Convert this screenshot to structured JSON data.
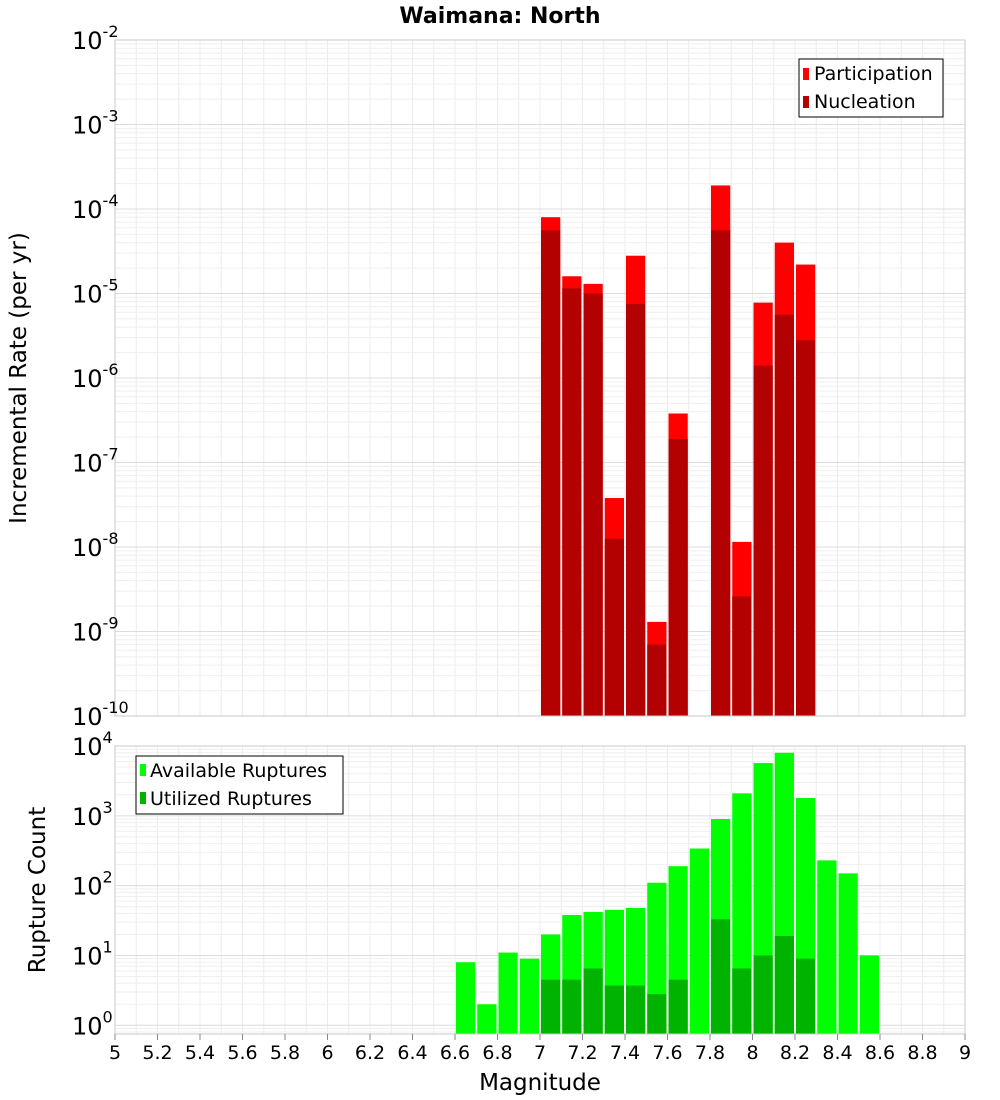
{
  "chart_data": [
    {
      "type": "bar",
      "title": "Waimana: North",
      "xlabel": "",
      "ylabel": "Incremental Rate (per yr)",
      "scale": "log",
      "xlim": [
        5,
        9
      ],
      "ylim": [
        1e-10,
        0.01
      ],
      "y_ticks": [
        {
          "base": "10",
          "exp": "-2"
        },
        {
          "base": "10",
          "exp": "-3"
        },
        {
          "base": "10",
          "exp": "-4"
        },
        {
          "base": "10",
          "exp": "-5"
        },
        {
          "base": "10",
          "exp": "-6"
        },
        {
          "base": "10",
          "exp": "-7"
        },
        {
          "base": "10",
          "exp": "-8"
        },
        {
          "base": "10",
          "exp": "-9"
        },
        {
          "base": "10",
          "exp": "-10"
        }
      ],
      "bin_width": 0.1,
      "grid": true,
      "legend": "top-right",
      "x": [
        7.05,
        7.15,
        7.25,
        7.35,
        7.45,
        7.55,
        7.65,
        7.85,
        7.95,
        8.05,
        8.15,
        8.25
      ],
      "series": [
        {
          "name": "Participation",
          "color": "#ff0000",
          "values": [
            8e-05,
            1.6e-05,
            1.3e-05,
            3.8e-08,
            2.8e-05,
            1.3e-09,
            3.8e-07,
            0.00019,
            1.15e-08,
            7.8e-06,
            4e-05,
            2.2e-05
          ]
        },
        {
          "name": "Nucleation",
          "color": "#b30000",
          "values": [
            5.6e-05,
            1.15e-05,
            1e-05,
            1.25e-08,
            7.5e-06,
            7e-10,
            1.9e-07,
            5.6e-05,
            2.6e-09,
            1.4e-06,
            5.6e-06,
            2.8e-06
          ]
        }
      ]
    },
    {
      "type": "bar",
      "title": "",
      "xlabel": "Magnitude",
      "ylabel": "Rupture Count",
      "scale": "log",
      "xlim": [
        5,
        9
      ],
      "ylim": [
        0.75,
        10000
      ],
      "x_ticks": [
        "5",
        "5.2",
        "5.4",
        "5.6",
        "5.8",
        "6",
        "6.2",
        "6.4",
        "6.6",
        "6.8",
        "7",
        "7.2",
        "7.4",
        "7.6",
        "7.8",
        "8",
        "8.2",
        "8.4",
        "8.6",
        "8.8",
        "9"
      ],
      "y_ticks": [
        {
          "base": "10",
          "exp": "4"
        },
        {
          "base": "10",
          "exp": "3"
        },
        {
          "base": "10",
          "exp": "2"
        },
        {
          "base": "10",
          "exp": "1"
        },
        {
          "base": "10",
          "exp": "0"
        }
      ],
      "bin_width": 0.1,
      "grid": true,
      "legend": "top-left",
      "series": [
        {
          "name": "Available Ruptures",
          "color": "#00ff00",
          "x": [
            6.65,
            6.75,
            6.85,
            6.95,
            7.05,
            7.15,
            7.25,
            7.35,
            7.45,
            7.55,
            7.65,
            7.75,
            7.85,
            7.95,
            8.05,
            8.15,
            8.25,
            8.35,
            8.45,
            8.55
          ],
          "values": [
            8,
            2,
            11,
            9,
            20,
            38,
            42,
            45,
            48,
            110,
            190,
            340,
            900,
            2100,
            5700,
            8000,
            1800,
            230,
            150,
            10
          ]
        },
        {
          "name": "Utilized Ruptures",
          "color": "#00b300",
          "x": [
            7.05,
            7.15,
            7.25,
            7.35,
            7.45,
            7.55,
            7.65,
            7.85,
            7.95,
            8.05,
            8.15,
            8.25
          ],
          "values": [
            4.5,
            4.5,
            6.5,
            3.7,
            3.7,
            2.8,
            4.5,
            33,
            6.5,
            10,
            19,
            9
          ]
        }
      ]
    }
  ]
}
